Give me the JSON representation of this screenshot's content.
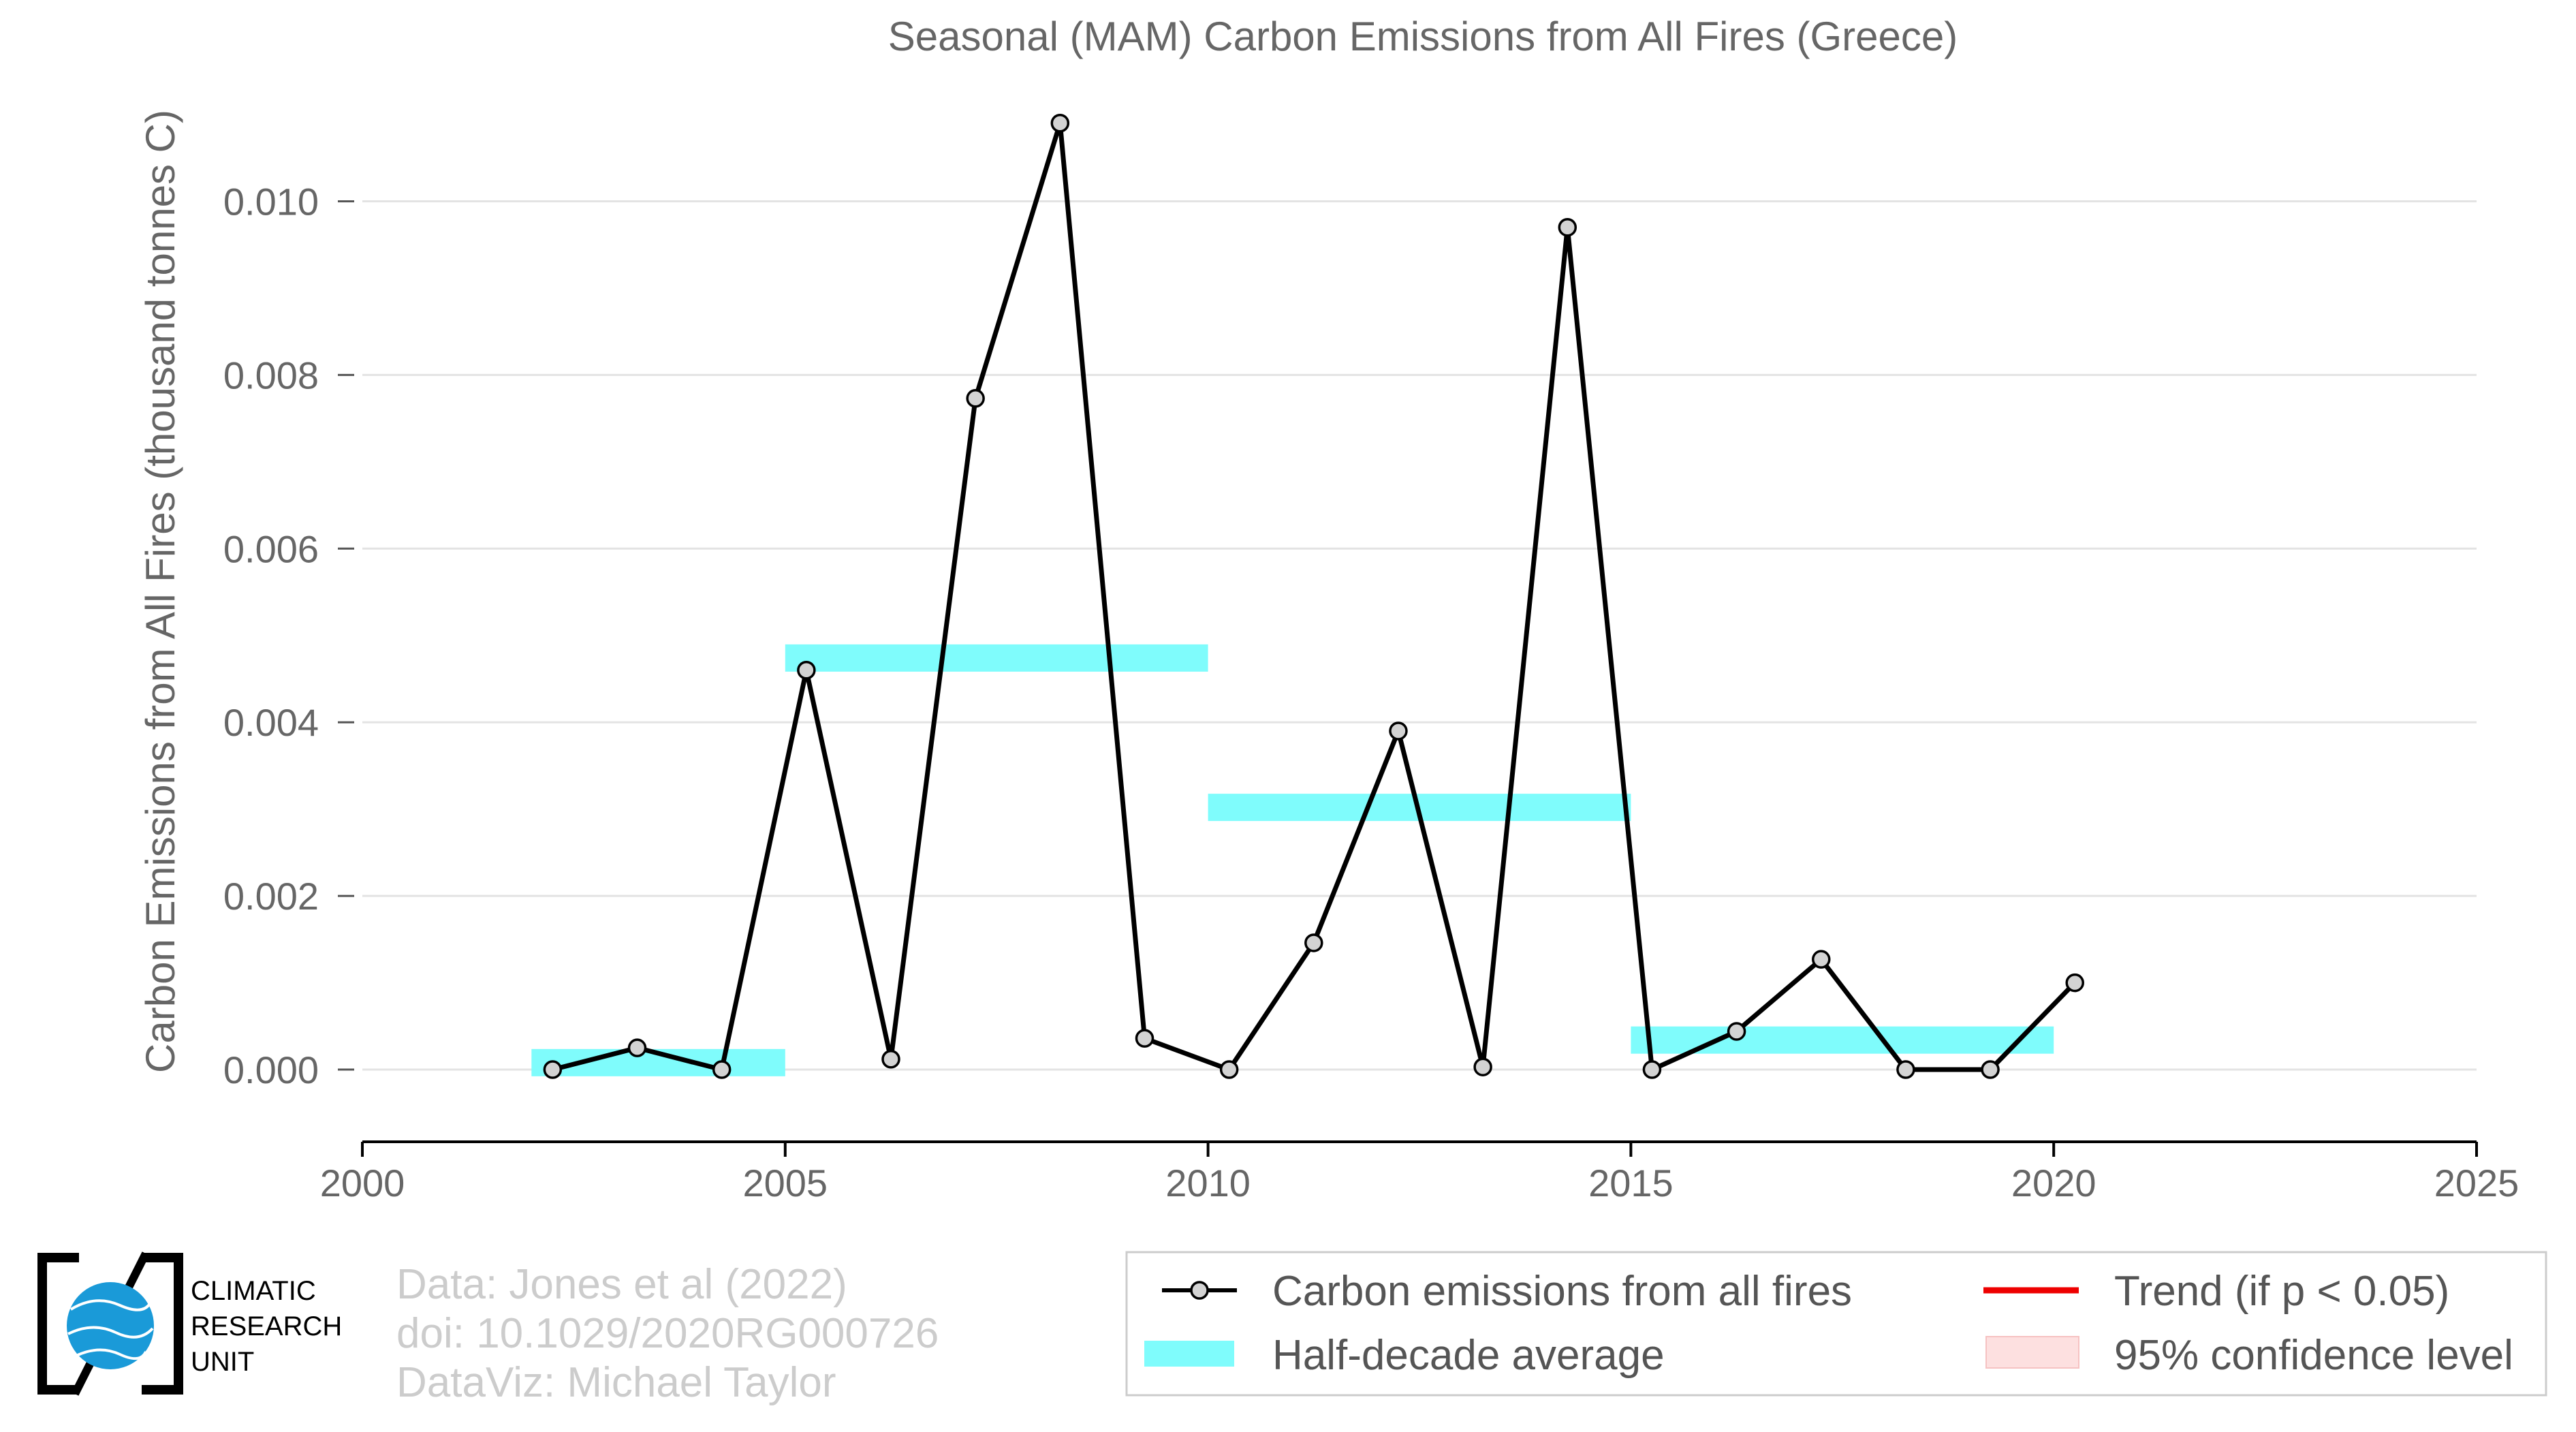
{
  "chart_data": {
    "type": "line",
    "title": "Seasonal (MAM) Carbon Emissions from All Fires (Greece)",
    "xlabel": "",
    "ylabel": "Carbon Emissions from All Fires (thousand tonnes C)",
    "xlim": [
      2000,
      2025
    ],
    "ylim": [
      -0.0008,
      0.011
    ],
    "xticks": [
      2000,
      2005,
      2010,
      2015,
      2020,
      2025
    ],
    "yticks": [
      0.0,
      0.002,
      0.004,
      0.006,
      0.008,
      0.01
    ],
    "ytick_labels": [
      "0.000",
      "0.002",
      "0.004",
      "0.006",
      "0.008",
      "0.010"
    ],
    "grid": "horizontal",
    "legend_position": "bottom-right",
    "series": [
      {
        "name": "Carbon emissions from all fires",
        "color": "#000000",
        "x": [
          2002.25,
          2003.25,
          2004.25,
          2005.25,
          2006.25,
          2007.25,
          2008.25,
          2009.25,
          2010.25,
          2011.25,
          2012.25,
          2013.25,
          2014.25,
          2015.25,
          2016.25,
          2017.25,
          2018.25,
          2019.25,
          2020.25
        ],
        "y": [
          0.0,
          0.00025,
          0.0,
          0.0046,
          0.00012,
          0.00773,
          0.0109,
          0.00036,
          0.0,
          0.00146,
          0.0039,
          3e-05,
          0.0097,
          0.0,
          0.00044,
          0.00127,
          0.0,
          0.0,
          0.001
        ]
      }
    ],
    "half_decade_average": {
      "name": "Half-decade average",
      "color": "#7ffcfc",
      "segments": [
        {
          "x_start": 2002,
          "x_end": 2005,
          "value": 8e-05
        },
        {
          "x_start": 2005,
          "x_end": 2010,
          "value": 0.00474
        },
        {
          "x_start": 2010,
          "x_end": 2015,
          "value": 0.00302
        },
        {
          "x_start": 2015,
          "x_end": 2020,
          "value": 0.00034
        }
      ]
    },
    "legend": {
      "line_label": "Carbon emissions from all fires",
      "avg_label": "Half-decade average",
      "trend_label": "Trend (if p < 0.05)",
      "ci_label": "95% confidence level",
      "trend_color": "#ee0000",
      "ci_color": "#fde0e0"
    }
  },
  "credits": {
    "line1": "Data: Jones et al (2022)",
    "line2": "doi: 10.1029/2020RG000726",
    "line3": "DataViz: Michael Taylor"
  },
  "logo": {
    "line1": "CLIMATIC",
    "line2": "RESEARCH",
    "line3": "UNIT",
    "globe_color": "#1a9ad8"
  }
}
